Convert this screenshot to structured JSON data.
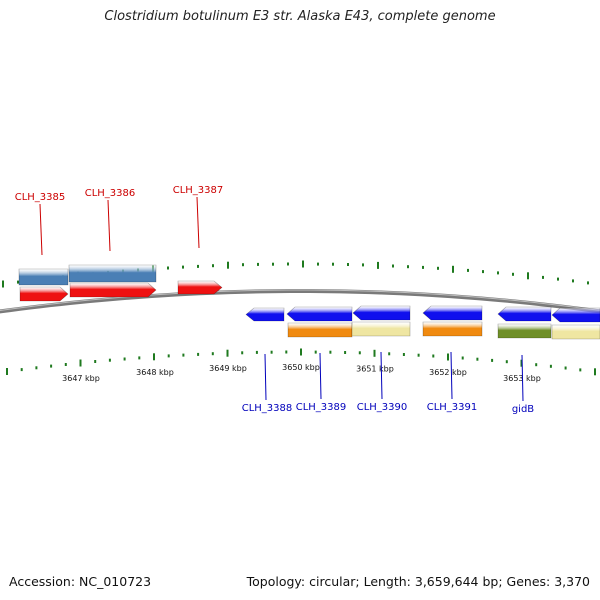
{
  "title": "Clostridium botulinum E3 str. Alaska E43, complete genome",
  "footer": {
    "accession": "Accession: NC_010723",
    "topology": "Topology: circular; Length: 3,659,644 bp; Genes: 3,370"
  },
  "colors": {
    "forward_cds": "#ee1111",
    "reverse_cds": "#1010ee",
    "forward_label": "#cc0000",
    "reverse_label": "#0000bb",
    "backbone": "#7a7a7a",
    "tick": "#1f7a1f",
    "cog_steel_blue": "#4a7fb5",
    "cog_orange": "#f08a10",
    "cog_pale_yellow": "#efe6a2",
    "cog_olive": "#6f8f28"
  },
  "scale_labels": [
    "3647 kbp",
    "3648 kbp",
    "3649 kbp",
    "3650 kbp",
    "3651 kbp",
    "3652 kbp",
    "3653 kbp"
  ],
  "forward_genes": [
    {
      "label": "CLH_3385",
      "cog_color": "steel_blue"
    },
    {
      "label": "CLH_3386",
      "cog_color": "steel_blue"
    },
    {
      "label": "CLH_3387",
      "cog_color": "none"
    }
  ],
  "reverse_genes": [
    {
      "label": "CLH_3388",
      "cog_color": "none"
    },
    {
      "label": "CLH_3389",
      "cog_color": "orange"
    },
    {
      "label": "CLH_3390",
      "cog_color": "pale_yellow"
    },
    {
      "label": "CLH_3391",
      "cog_color": "orange"
    },
    {
      "label": "gidB",
      "cog_color": "olive+pale_yellow"
    }
  ]
}
